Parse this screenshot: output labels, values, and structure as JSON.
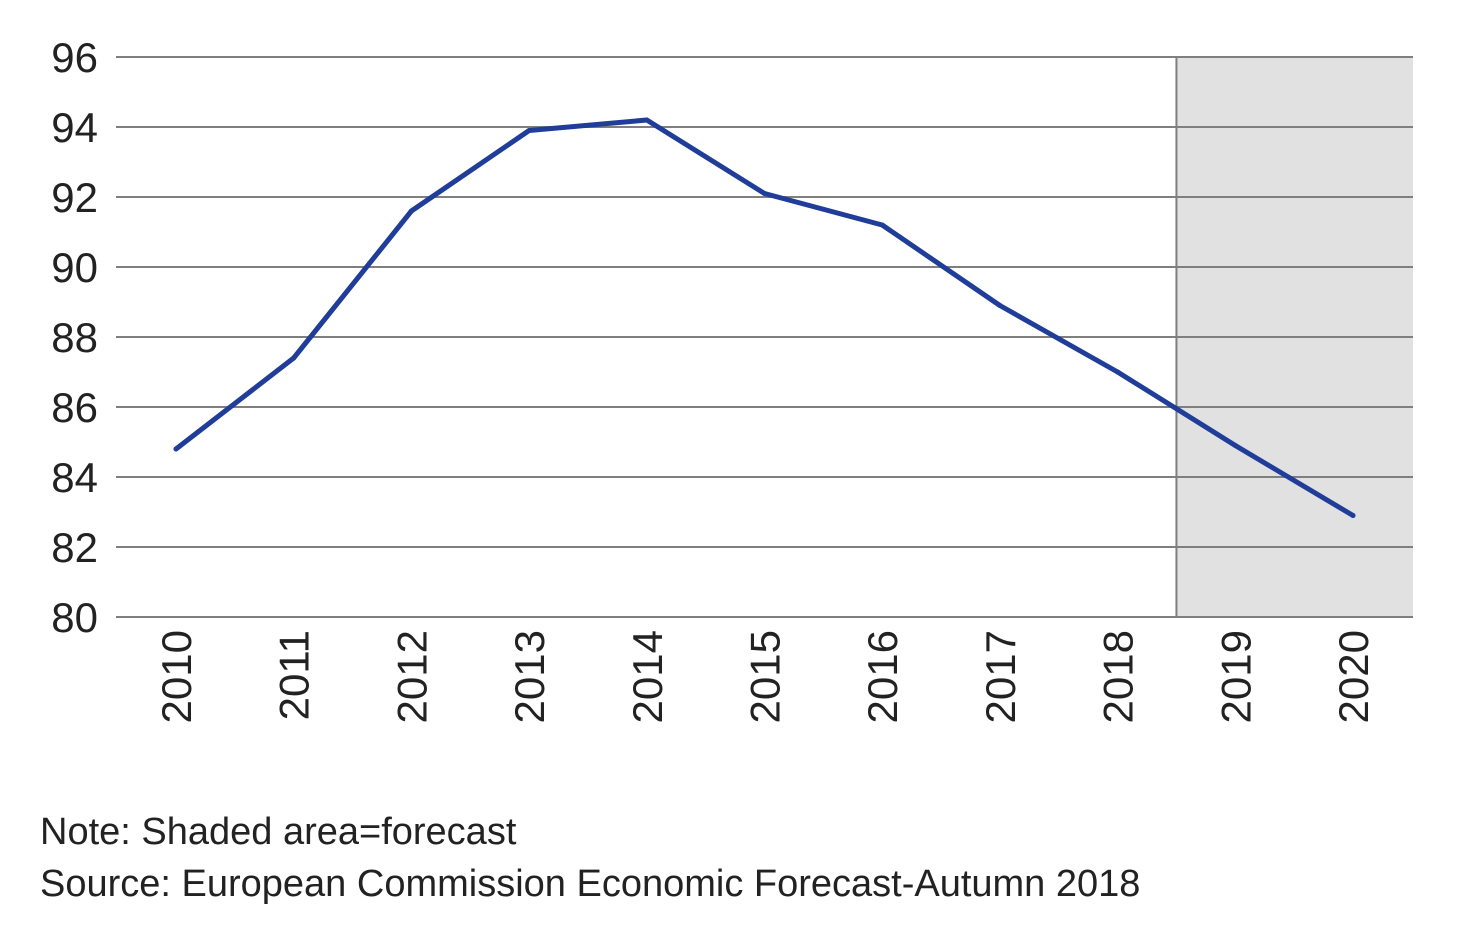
{
  "chart_data": {
    "type": "line",
    "title": "",
    "xlabel": "",
    "ylabel": "",
    "categories": [
      "2010",
      "2011",
      "2012",
      "2013",
      "2014",
      "2015",
      "2016",
      "2017",
      "2018",
      "2019",
      "2020"
    ],
    "series": [
      {
        "values": [
          84.8,
          87.4,
          91.6,
          93.9,
          94.2,
          92.1,
          91.2,
          88.9,
          87.0,
          84.9,
          82.9
        ]
      }
    ],
    "ylim": [
      80,
      96
    ],
    "yticks": [
      80,
      82,
      84,
      86,
      88,
      90,
      92,
      94,
      96
    ],
    "grid": "horizontal",
    "forecast_shaded_from": "2019",
    "colors": {
      "line": "#1f3d99",
      "shade": "#e1e1e1",
      "grid": "#7f7f7f"
    }
  },
  "notes": {
    "note": "Note: Shaded area=forecast",
    "source": "Source: European Commission Economic Forecast-Autumn 2018"
  }
}
